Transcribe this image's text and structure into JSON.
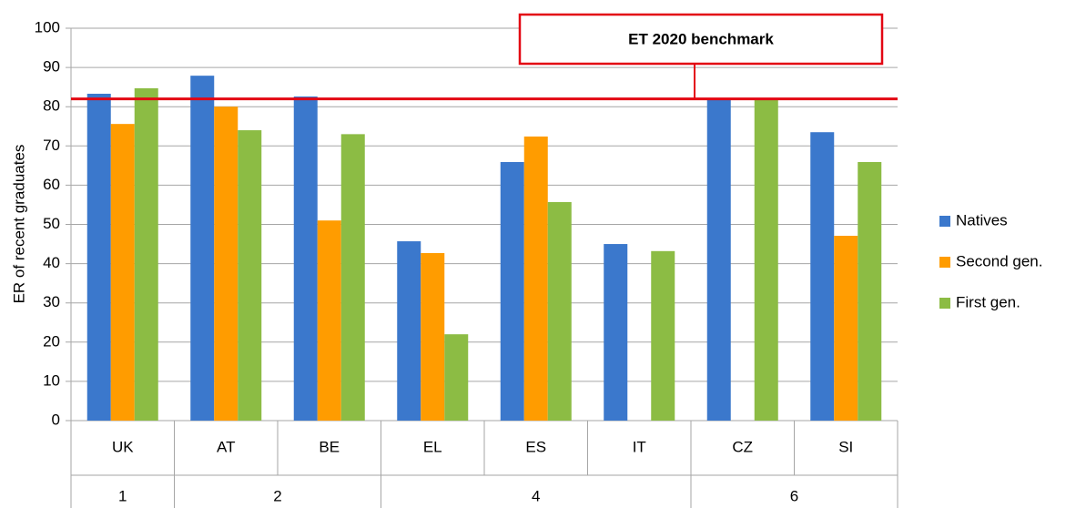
{
  "chart_data": {
    "type": "bar",
    "y_label": "ER of recent graduates",
    "categories": [
      "UK",
      "AT",
      "BE",
      "EL",
      "ES",
      "IT",
      "CZ",
      "SI"
    ],
    "group_labels": [
      "1",
      "2",
      null,
      "4",
      null,
      null,
      "6",
      null
    ],
    "series": [
      {
        "name": "Natives",
        "color": "#3b78cc",
        "values": [
          83.3,
          87.9,
          82.6,
          45.7,
          65.9,
          45,
          81.7,
          73.5
        ]
      },
      {
        "name": "Second gen.",
        "color": "#ff9c00",
        "values": [
          75.6,
          80,
          51,
          42.7,
          72.4,
          null,
          null,
          47.1
        ]
      },
      {
        "name": "First gen.",
        "color": "#8cbc44",
        "values": [
          84.7,
          74,
          73,
          22,
          55.7,
          43.2,
          81.7,
          65.9
        ]
      }
    ],
    "benchmark": {
      "label": "ET 2020 benchmark",
      "value": 82,
      "color": "#e30613"
    },
    "ylim": [
      0,
      100
    ],
    "yticks": [
      0,
      10,
      20,
      30,
      40,
      50,
      60,
      70,
      80,
      90,
      100
    ],
    "grid": true,
    "legend": "right"
  }
}
